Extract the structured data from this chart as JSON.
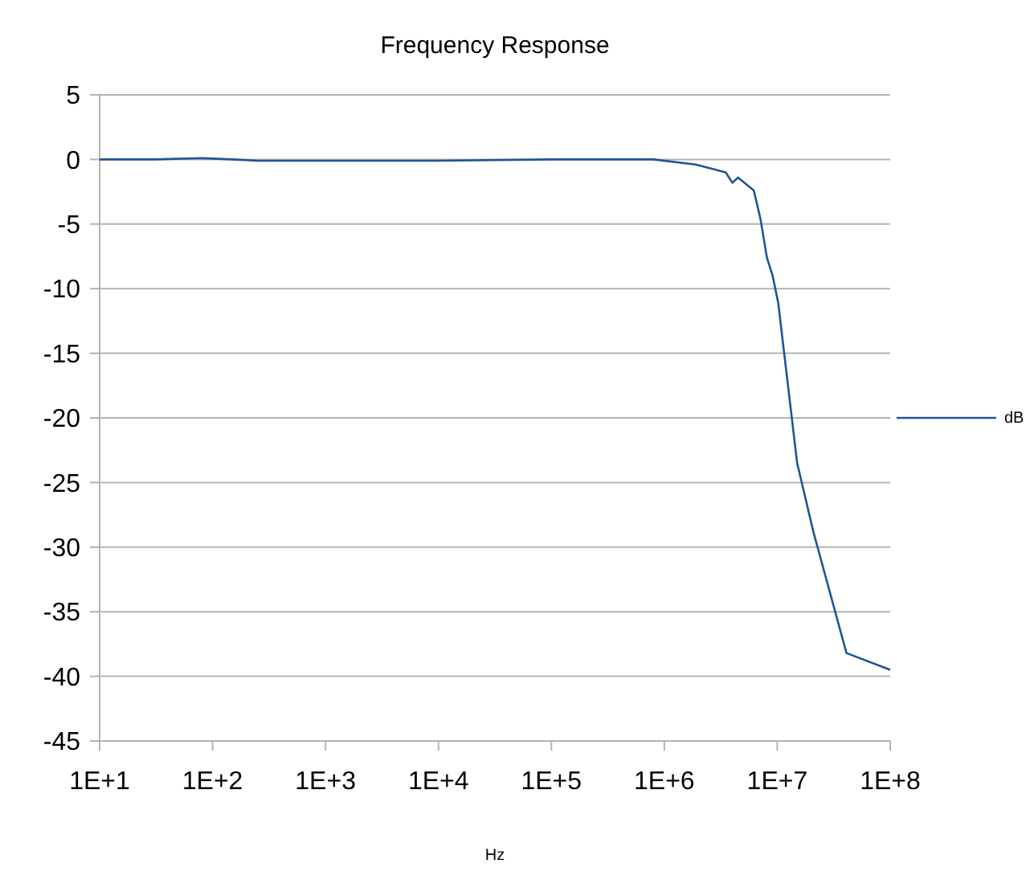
{
  "chart_data": {
    "type": "line",
    "title": "Frequency Response",
    "xlabel": "Hz",
    "log": "x",
    "grid": "y",
    "legend": "right",
    "marker": "none",
    "line_style": "solid",
    "xlim": [
      10,
      100000000
    ],
    "xticks": [
      {
        "value": 10,
        "label": "1E+1"
      },
      {
        "value": 100,
        "label": "1E+2"
      },
      {
        "value": 1000,
        "label": "1E+3"
      },
      {
        "value": 10000,
        "label": "1E+4"
      },
      {
        "value": 100000,
        "label": "1E+5"
      },
      {
        "value": 1000000,
        "label": "1E+6"
      },
      {
        "value": 10000000,
        "label": "1E+7"
      },
      {
        "value": 100000000,
        "label": "1E+8"
      }
    ],
    "ylim": [
      -45,
      5
    ],
    "yticks": [
      5,
      0,
      -5,
      -10,
      -15,
      -20,
      -25,
      -30,
      -35,
      -40,
      -45
    ],
    "series": [
      {
        "name": "dB",
        "color": "#1f5596",
        "x": [
          10,
          30,
          80,
          150,
          250,
          1000,
          10000,
          100000,
          800000,
          1900000,
          3500000,
          4000000,
          4500000,
          6200000,
          7100000,
          8100000,
          9100000,
          10200000,
          15000000,
          21000000,
          41000000,
          100000000
        ],
        "values": [
          0,
          0,
          0.1,
          0,
          -0.1,
          -0.1,
          -0.1,
          0,
          0,
          -0.4,
          -1,
          -1.8,
          -1.4,
          -2.4,
          -4.6,
          -7.6,
          -9.0,
          -11.1,
          -23.5,
          -28.9,
          -38.2,
          -39.5
        ]
      }
    ]
  }
}
